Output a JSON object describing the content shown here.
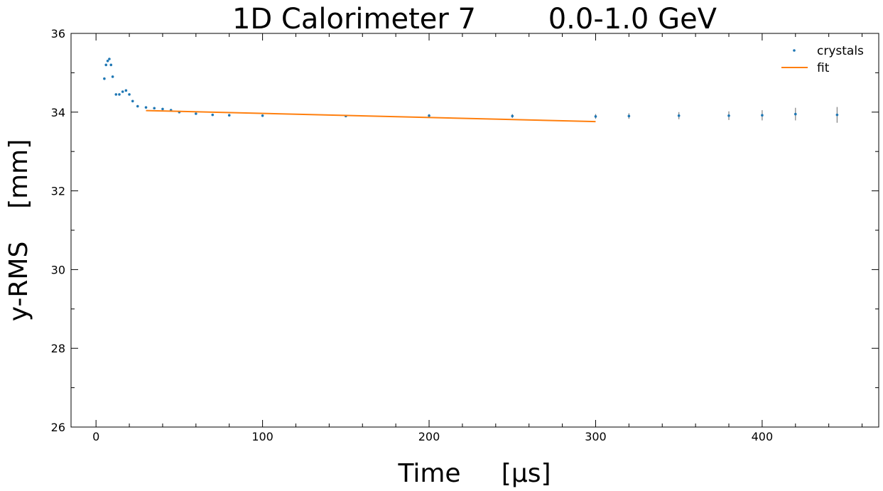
{
  "chart_data": {
    "type": "scatter",
    "title": "1D Calorimeter 7        0.0-1.0 GeV",
    "xlabel": "Time     [µs]",
    "ylabel": "y-RMS    [mm]",
    "xlim": [
      -15,
      470
    ],
    "ylim": [
      26,
      36
    ],
    "xticks": [
      0,
      100,
      200,
      300,
      400
    ],
    "yticks": [
      26,
      28,
      30,
      32,
      34,
      36
    ],
    "grid": false,
    "legend_position": "top-right",
    "colors": {
      "crystals": "#1f77b4",
      "fit": "#ff7f0e",
      "errorbar": "#808080"
    },
    "series": [
      {
        "name": "crystals",
        "kind": "points-with-errorbars",
        "x": [
          5,
          6,
          7,
          8,
          9,
          10,
          12,
          14,
          16,
          18,
          20,
          22,
          25,
          30,
          35,
          40,
          45,
          50,
          60,
          70,
          80,
          100,
          150,
          200,
          250,
          300,
          320,
          350,
          380,
          400,
          420,
          445
        ],
        "y": [
          34.85,
          35.2,
          35.3,
          35.35,
          35.2,
          34.9,
          34.45,
          34.45,
          34.52,
          34.55,
          34.45,
          34.28,
          34.15,
          34.12,
          34.1,
          34.08,
          34.05,
          34.0,
          33.96,
          33.93,
          33.92,
          33.91,
          33.9,
          33.91,
          33.9,
          33.89,
          33.9,
          33.91,
          33.91,
          33.92,
          33.95,
          33.93
        ],
        "yerr": [
          0.02,
          0.02,
          0.02,
          0.02,
          0.02,
          0.02,
          0.02,
          0.02,
          0.02,
          0.02,
          0.02,
          0.02,
          0.02,
          0.02,
          0.02,
          0.02,
          0.02,
          0.02,
          0.02,
          0.02,
          0.02,
          0.02,
          0.03,
          0.04,
          0.05,
          0.06,
          0.07,
          0.09,
          0.11,
          0.13,
          0.16,
          0.2
        ]
      },
      {
        "name": "fit",
        "kind": "line",
        "x": [
          30,
          300
        ],
        "y": [
          34.04,
          33.76
        ]
      }
    ]
  }
}
